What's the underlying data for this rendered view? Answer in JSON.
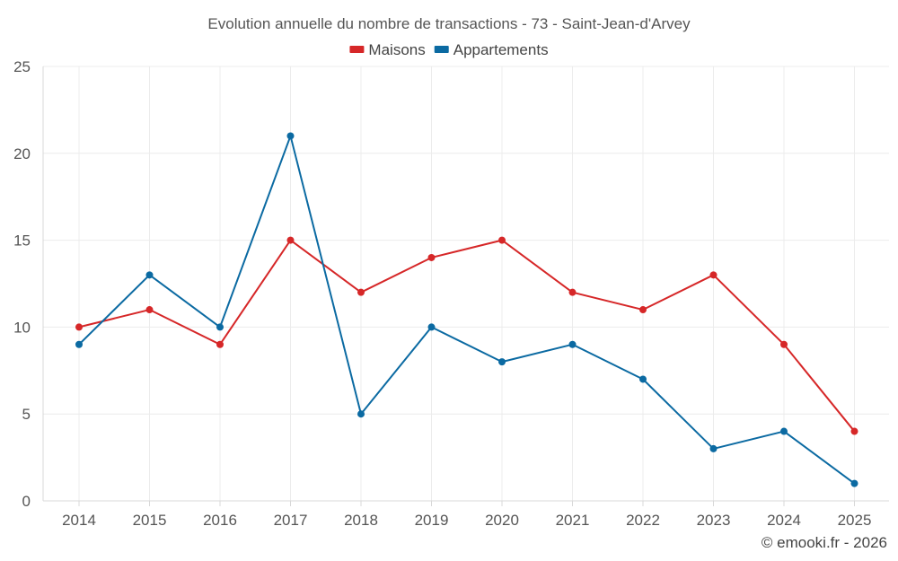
{
  "chart_data": {
    "type": "line",
    "title": "Evolution annuelle du nombre de transactions - 73 - Saint-Jean-d'Arvey",
    "xlabel": "",
    "ylabel": "",
    "categories": [
      "2014",
      "2015",
      "2016",
      "2017",
      "2018",
      "2019",
      "2020",
      "2021",
      "2022",
      "2023",
      "2024",
      "2025"
    ],
    "ylim": [
      0,
      25
    ],
    "yticks": [
      0,
      5,
      10,
      15,
      20,
      25
    ],
    "grid": true,
    "legend_position": "top-center",
    "series": [
      {
        "name": "Maisons",
        "color": "#d62728",
        "values": [
          10,
          11,
          9,
          15,
          12,
          14,
          15,
          12,
          11,
          13,
          9,
          4
        ]
      },
      {
        "name": "Appartements",
        "color": "#0b6aa2",
        "values": [
          9,
          13,
          10,
          21,
          5,
          10,
          8,
          9,
          7,
          3,
          4,
          1
        ]
      }
    ]
  },
  "watermark": "© emooki.fr - 2026"
}
